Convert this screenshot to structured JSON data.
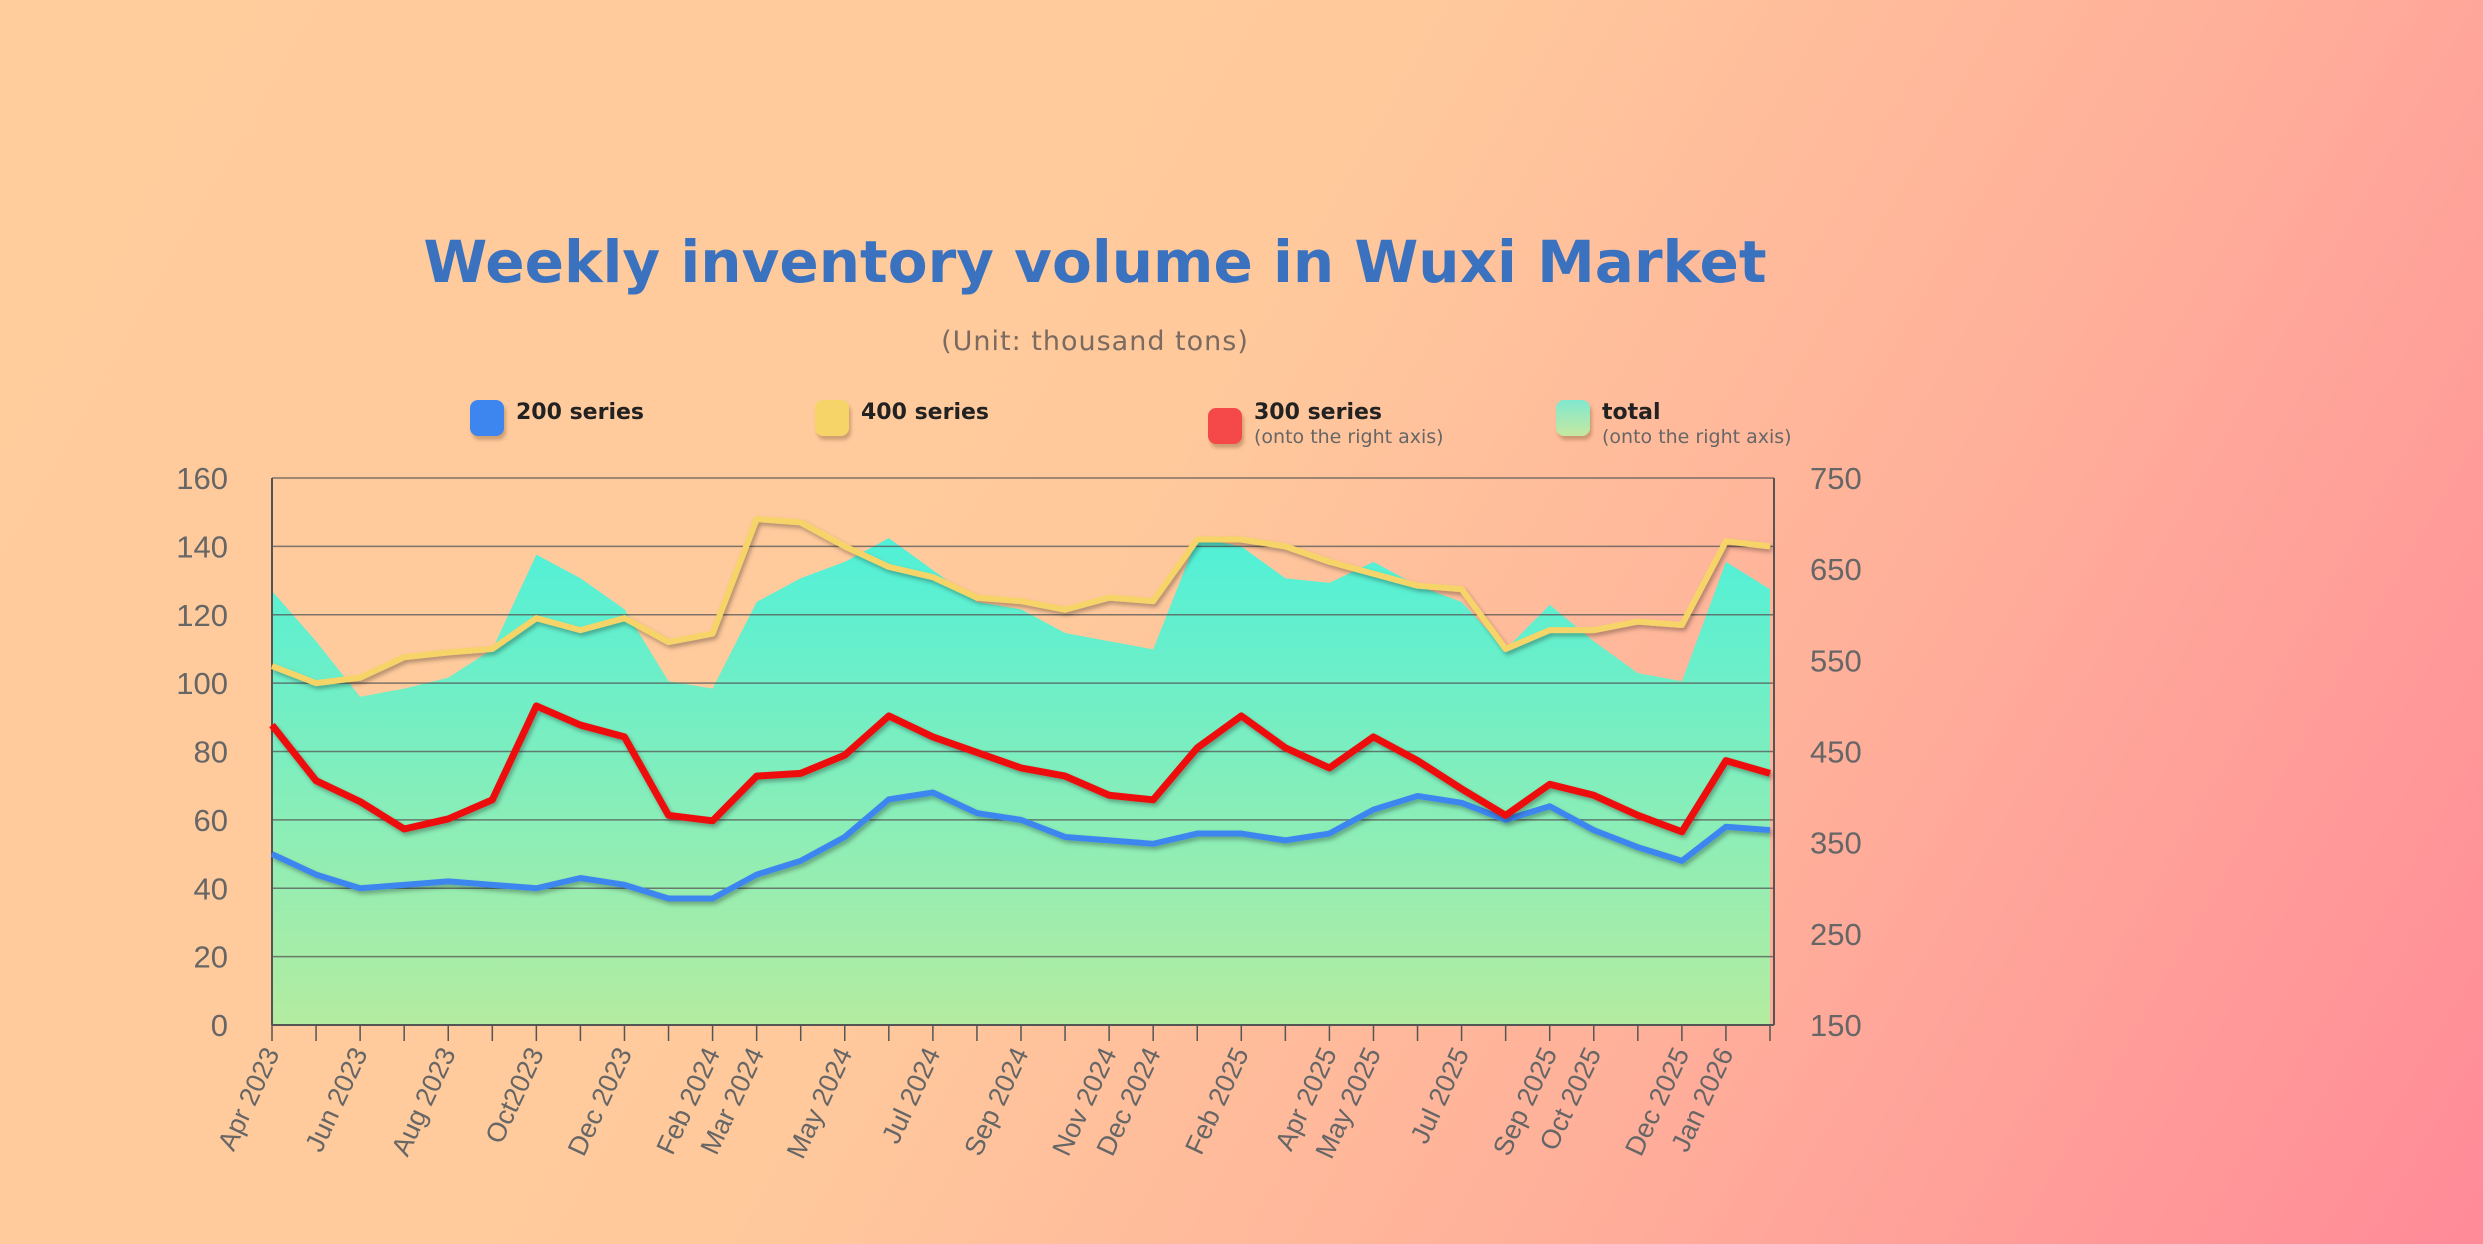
{
  "chart_data": {
    "type": "line",
    "title": "Weekly inventory volume in Wuxi Market",
    "subtitle": "(Unit: thousand tons)",
    "x": [
      "2023-04",
      "2023-05",
      "2023-06",
      "2023-07",
      "2023-08",
      "2023-09",
      "2023-10",
      "2023-11",
      "2023-12",
      "2024-01",
      "2024-02",
      "2024-03",
      "2024-04",
      "2024-05",
      "2024-06",
      "2024-07",
      "2024-08",
      "2024-09",
      "2024-10",
      "2024-11",
      "2024-12",
      "2025-01",
      "2025-02",
      "2025-03",
      "2025-04",
      "2025-05",
      "2025-06",
      "2025-07",
      "2025-08",
      "2025-09",
      "2025-10",
      "2025-11",
      "2025-12",
      "2026-01",
      "2026-02"
    ],
    "xlim": [
      "2023-04",
      "2026-02"
    ],
    "x_tick_labels": [
      {
        "label": "Apr 2023",
        "date": "2023-04"
      },
      {
        "label": "Jun 2023",
        "date": "2023-06"
      },
      {
        "label": "Aug 2023",
        "date": "2023-08"
      },
      {
        "label": "Oct2023",
        "date": "2023-10"
      },
      {
        "label": "Dec 2023",
        "date": "2023-12"
      },
      {
        "label": "Feb 2024",
        "date": "2024-02"
      },
      {
        "label": "Mar 2024",
        "date": "2024-03"
      },
      {
        "label": "May 2024",
        "date": "2024-05"
      },
      {
        "label": "Jul 2024",
        "date": "2024-07"
      },
      {
        "label": "Sep 2024",
        "date": "2024-09"
      },
      {
        "label": "Nov 2024",
        "date": "2024-11"
      },
      {
        "label": "Dec 2024",
        "date": "2024-12"
      },
      {
        "label": "Feb 2025",
        "date": "2025-02"
      },
      {
        "label": "Apr 2025",
        "date": "2025-04"
      },
      {
        "label": "May 2025",
        "date": "2025-05"
      },
      {
        "label": "Jul 2025",
        "date": "2025-07"
      },
      {
        "label": "Sep 2025",
        "date": "2025-09"
      },
      {
        "label": "Oct 2025",
        "date": "2025-10"
      },
      {
        "label": "Dec 2025",
        "date": "2025-12"
      },
      {
        "label": "Jan 2026",
        "date": "2026-01"
      }
    ],
    "y_left": {
      "lim": [
        0,
        160
      ],
      "ticks": [
        0,
        20,
        40,
        60,
        80,
        100,
        120,
        140,
        160
      ]
    },
    "y_right": {
      "lim": [
        150,
        750
      ],
      "ticks": [
        150,
        250,
        350,
        450,
        550,
        650,
        750
      ]
    },
    "grid": true,
    "legend_placement": "top",
    "series": [
      {
        "name": "200 series",
        "axis": "left",
        "type": "line",
        "color": "#3d86f0",
        "values": [
          50,
          44,
          40,
          41,
          42,
          41,
          40,
          43,
          41,
          37,
          37,
          44,
          48,
          55,
          66,
          68,
          62,
          60,
          55,
          54,
          53,
          56,
          56,
          54,
          56,
          63,
          67,
          65,
          60,
          64,
          57,
          52,
          48,
          58,
          57
        ]
      },
      {
        "name": "400 series",
        "axis": "left",
        "type": "line",
        "color": "#f7d468",
        "values": [
          105,
          100,
          101.6,
          107.6,
          109,
          110,
          119,
          115.5,
          119,
          112,
          114.5,
          148,
          147,
          140,
          134,
          131,
          125,
          124,
          121.5,
          125,
          124,
          142,
          142,
          140,
          135.5,
          132,
          128.5,
          127.5,
          110,
          115.5,
          115.5,
          118,
          117,
          141.5,
          140
        ]
      },
      {
        "name": "300 series",
        "sub": "(onto the right axis)",
        "axis": "right",
        "type": "line",
        "color": "#ee1111",
        "values": [
          479,
          418,
          395,
          365,
          376,
          397,
          500,
          479,
          466,
          380,
          374,
          423,
          426,
          446,
          489,
          466,
          449,
          432,
          423,
          402,
          397,
          454,
          489,
          454,
          432,
          466,
          440,
          409,
          380,
          414,
          402,
          380,
          362,
          440,
          426
        ]
      },
      {
        "name": "total",
        "sub": "(onto the right axis)",
        "axis": "right",
        "type": "area",
        "color": "#50f0d8",
        "values": [
          626,
          571,
          510,
          519,
          531,
          562,
          666,
          640,
          606,
          527,
          519,
          614,
          640,
          658,
          684,
          649,
          614,
          606,
          580,
          571,
          562,
          684,
          675,
          640,
          635,
          658,
          632,
          614,
          562,
          611,
          571,
          536,
          527,
          658,
          628
        ]
      }
    ]
  },
  "colors": {
    "total_top": "#50f0d8",
    "total_bottom": "#b4eca0",
    "grid": "#555555",
    "text": "#666666",
    "title": "#3a72c0"
  }
}
